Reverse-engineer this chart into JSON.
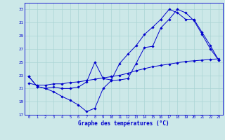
{
  "background_color": "#cce8e8",
  "grid_color": "#aad4d4",
  "line_color": "#0000cc",
  "xlabel": "Graphe des températures (°C)",
  "ylim": [
    17,
    34
  ],
  "xlim": [
    -0.5,
    23.5
  ],
  "yticks": [
    17,
    19,
    21,
    23,
    25,
    27,
    29,
    31,
    33
  ],
  "xticks": [
    0,
    1,
    2,
    3,
    4,
    5,
    6,
    7,
    8,
    9,
    10,
    11,
    12,
    13,
    14,
    15,
    16,
    17,
    18,
    19,
    20,
    21,
    22,
    23
  ],
  "line1_x": [
    0,
    1,
    2,
    3,
    4,
    5,
    6,
    7,
    8,
    9,
    10,
    11,
    12,
    13,
    14,
    15,
    16,
    17,
    18,
    19,
    20,
    21,
    22,
    23
  ],
  "line1_y": [
    22.8,
    21.3,
    21.0,
    20.5,
    19.8,
    19.2,
    18.5,
    17.5,
    18.0,
    21.0,
    22.2,
    22.3,
    22.5,
    24.8,
    27.2,
    27.4,
    30.2,
    31.5,
    33.0,
    32.5,
    31.3,
    29.2,
    27.0,
    25.3
  ],
  "line2_x": [
    0,
    1,
    2,
    3,
    4,
    5,
    6,
    7,
    8,
    9,
    10,
    11,
    12,
    13,
    14,
    15,
    16,
    17,
    18,
    19,
    20,
    21,
    22,
    23
  ],
  "line2_y": [
    22.8,
    21.3,
    21.0,
    21.2,
    21.0,
    21.0,
    21.2,
    22.0,
    25.0,
    22.5,
    22.3,
    24.8,
    26.2,
    27.5,
    29.2,
    30.3,
    31.5,
    33.0,
    32.5,
    31.5,
    31.5,
    29.5,
    27.5,
    25.3
  ],
  "line3_x": [
    0,
    1,
    2,
    3,
    4,
    5,
    6,
    7,
    8,
    9,
    10,
    11,
    12,
    13,
    14,
    15,
    16,
    17,
    18,
    19,
    20,
    21,
    22,
    23
  ],
  "line3_y": [
    21.8,
    21.5,
    21.5,
    21.7,
    21.7,
    21.9,
    22.0,
    22.2,
    22.4,
    22.6,
    22.8,
    23.0,
    23.3,
    23.7,
    24.0,
    24.3,
    24.5,
    24.7,
    24.9,
    25.1,
    25.2,
    25.3,
    25.4,
    25.5
  ]
}
